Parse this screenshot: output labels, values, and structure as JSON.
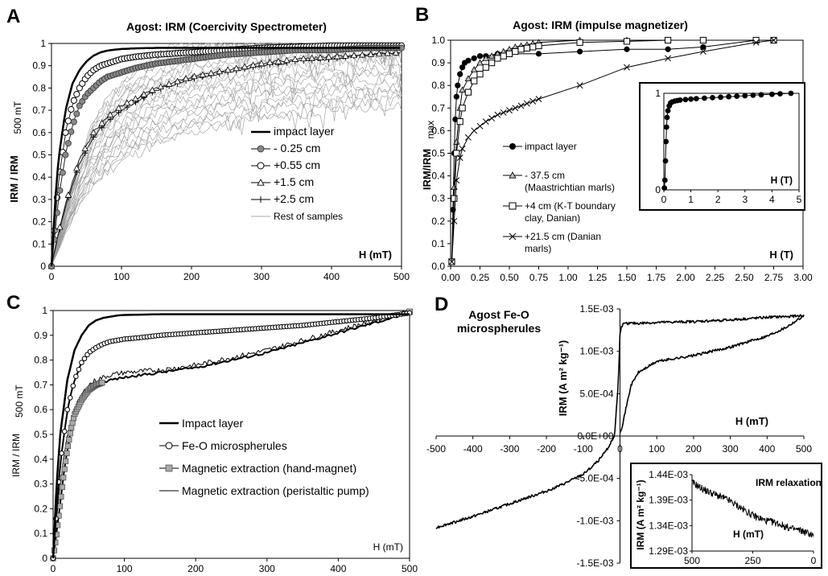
{
  "chart_data": [
    {
      "id": "A",
      "panel_letter": "A",
      "type": "line",
      "title": "Agost: IRM (Coercivity Spectrometer)",
      "xlabel": "H (mT)",
      "ylabel_main": "IRM / IRM",
      "ylabel_sub": "500 mT",
      "xlim": [
        0,
        500
      ],
      "ylim": [
        0,
        1
      ],
      "xticks": [
        0,
        100,
        200,
        300,
        400,
        500
      ],
      "yticks": [
        0,
        0.1,
        0.2,
        0.3,
        0.4,
        0.5,
        0.6,
        0.7,
        0.8,
        0.9,
        1
      ],
      "grid": false,
      "legend_position": "middle-right",
      "series": [
        {
          "name": "impact layer",
          "marker": "none",
          "line": "thick",
          "x": [
            0,
            5,
            10,
            20,
            30,
            40,
            50,
            60,
            70,
            80,
            90,
            100,
            120,
            150,
            200,
            300,
            400,
            500
          ],
          "y": [
            0,
            0.28,
            0.48,
            0.7,
            0.82,
            0.88,
            0.92,
            0.945,
            0.96,
            0.968,
            0.972,
            0.975,
            0.978,
            0.98,
            0.98,
            0.98,
            0.98,
            0.98
          ]
        },
        {
          "name": "- 0.25 cm",
          "marker": "circle-gray",
          "line": "thin",
          "x": [
            0,
            5,
            10,
            20,
            30,
            40,
            50,
            60,
            70,
            80,
            90,
            100,
            120,
            150,
            200,
            250,
            300,
            350,
            400,
            450,
            500
          ],
          "y": [
            0,
            0.15,
            0.3,
            0.5,
            0.63,
            0.72,
            0.77,
            0.8,
            0.83,
            0.85,
            0.86,
            0.87,
            0.89,
            0.91,
            0.93,
            0.95,
            0.96,
            0.97,
            0.97,
            0.98,
            0.98
          ]
        },
        {
          "name": "+0.55 cm",
          "marker": "circle-open",
          "line": "thin",
          "x": [
            0,
            5,
            10,
            20,
            30,
            40,
            50,
            60,
            70,
            80,
            90,
            100,
            120,
            150,
            200,
            250,
            300,
            350,
            400,
            450,
            500
          ],
          "y": [
            0,
            0.2,
            0.38,
            0.6,
            0.73,
            0.8,
            0.85,
            0.88,
            0.9,
            0.91,
            0.92,
            0.93,
            0.94,
            0.95,
            0.96,
            0.97,
            0.98,
            0.985,
            0.99,
            0.99,
            0.99
          ]
        },
        {
          "name": "+1.5 cm",
          "marker": "triangle",
          "line": "thin",
          "x": [
            0,
            10,
            20,
            40,
            60,
            80,
            100,
            150,
            200,
            250,
            300,
            350,
            400,
            450,
            500
          ],
          "y": [
            0,
            0.15,
            0.28,
            0.48,
            0.6,
            0.67,
            0.72,
            0.8,
            0.85,
            0.88,
            0.91,
            0.93,
            0.94,
            0.95,
            0.96
          ]
        },
        {
          "name": "+2.5 cm",
          "marker": "plus",
          "line": "thin",
          "x": [
            0,
            10,
            20,
            40,
            60,
            80,
            100,
            150,
            200,
            250,
            300,
            350,
            400,
            450,
            500
          ],
          "y": [
            0,
            0.14,
            0.27,
            0.46,
            0.58,
            0.65,
            0.7,
            0.79,
            0.84,
            0.87,
            0.9,
            0.92,
            0.93,
            0.95,
            0.96
          ]
        },
        {
          "name": "Rest of samples",
          "marker": "none",
          "line": "gray",
          "x": [
            0,
            10,
            20,
            40,
            60,
            80,
            100,
            150,
            200,
            250,
            300,
            350,
            400,
            450,
            500
          ],
          "y": [
            0,
            0.1,
            0.2,
            0.37,
            0.5,
            0.58,
            0.64,
            0.74,
            0.8,
            0.84,
            0.87,
            0.89,
            0.91,
            0.92,
            0.93
          ]
        }
      ]
    },
    {
      "id": "B",
      "panel_letter": "B",
      "type": "line",
      "title": "Agost: IRM (impulse magnetizer)",
      "xlabel": "H (T)",
      "ylabel_main": "IRM/IRM",
      "ylabel_sub": "max",
      "xlim": [
        0,
        3
      ],
      "ylim": [
        0,
        1
      ],
      "xticks": [
        0,
        0.25,
        0.5,
        0.75,
        1,
        1.25,
        1.5,
        1.75,
        2,
        2.25,
        2.5,
        2.75,
        3
      ],
      "xtick_labels": [
        "0.00",
        "0.25",
        "0.50",
        "0.75",
        "1.00",
        "1.25",
        "1.50",
        "1.75",
        "2.00",
        "2.25",
        "2.50",
        "2.75",
        "3.00"
      ],
      "yticks": [
        0,
        0.1,
        0.2,
        0.3,
        0.4,
        0.5,
        0.6,
        0.7,
        0.8,
        0.9,
        1
      ],
      "ytick_labels": [
        "0.0",
        "0.1",
        "0.2",
        "0.3",
        "0.4",
        "0.5",
        "0.6",
        "0.7",
        "0.8",
        "0.9",
        "1.0"
      ],
      "grid": false,
      "legend_position": "middle-center",
      "series": [
        {
          "name": "impact layer",
          "marker": "circle-filled",
          "x": [
            0.01,
            0.02,
            0.03,
            0.04,
            0.05,
            0.06,
            0.08,
            0.1,
            0.12,
            0.15,
            0.2,
            0.25,
            0.3,
            0.4,
            0.5,
            0.75,
            1.1,
            1.5,
            1.85,
            2.15,
            2.6,
            2.75
          ],
          "y": [
            0.02,
            0.25,
            0.5,
            0.65,
            0.75,
            0.8,
            0.85,
            0.88,
            0.9,
            0.91,
            0.92,
            0.93,
            0.93,
            0.94,
            0.94,
            0.94,
            0.95,
            0.96,
            0.96,
            0.97,
            1.0,
            1.0
          ]
        },
        {
          "name": "- 37.5 cm (Maastrichtian marls)",
          "marker": "triangle-gray",
          "x": [
            0.01,
            0.03,
            0.05,
            0.08,
            0.1,
            0.15,
            0.2,
            0.25,
            0.3,
            0.35,
            0.4,
            0.45,
            0.5,
            0.55,
            0.6,
            0.65,
            0.7,
            0.75,
            1.1,
            1.5,
            1.85,
            2.15,
            2.6,
            2.75
          ],
          "y": [
            0.02,
            0.35,
            0.55,
            0.7,
            0.78,
            0.83,
            0.87,
            0.9,
            0.92,
            0.93,
            0.94,
            0.95,
            0.96,
            0.97,
            0.975,
            0.98,
            0.985,
            0.99,
            1.0,
            1.0,
            1.0,
            1.0,
            1.0,
            1.0
          ]
        },
        {
          "name": "+4 cm (K-T boundary clay, Danian)",
          "marker": "square-open",
          "x": [
            0.01,
            0.03,
            0.05,
            0.08,
            0.1,
            0.15,
            0.2,
            0.25,
            0.3,
            0.35,
            0.4,
            0.45,
            0.5,
            0.55,
            0.6,
            0.65,
            0.7,
            0.75,
            1.1,
            1.5,
            1.85,
            2.15,
            2.6,
            2.75
          ],
          "y": [
            0.02,
            0.3,
            0.5,
            0.64,
            0.7,
            0.77,
            0.82,
            0.85,
            0.88,
            0.9,
            0.92,
            0.93,
            0.94,
            0.95,
            0.96,
            0.965,
            0.97,
            0.975,
            0.99,
            0.995,
            1.0,
            1.0,
            1.0,
            1.0
          ]
        },
        {
          "name": "+21.5 cm (Danian marls)",
          "marker": "cross",
          "x": [
            0.01,
            0.03,
            0.05,
            0.08,
            0.1,
            0.15,
            0.2,
            0.25,
            0.3,
            0.35,
            0.4,
            0.45,
            0.5,
            0.55,
            0.6,
            0.65,
            0.7,
            0.75,
            1.1,
            1.5,
            1.85,
            2.15,
            2.6,
            2.75
          ],
          "y": [
            0.02,
            0.2,
            0.38,
            0.48,
            0.52,
            0.57,
            0.6,
            0.62,
            0.64,
            0.655,
            0.67,
            0.68,
            0.69,
            0.7,
            0.71,
            0.72,
            0.73,
            0.74,
            0.8,
            0.88,
            0.92,
            0.95,
            0.99,
            1.0
          ]
        }
      ]
    },
    {
      "id": "B-inset",
      "type": "line",
      "xlabel": "H (T)",
      "xlim": [
        0,
        5
      ],
      "ylim": [
        0,
        1
      ],
      "xticks": [
        0,
        1,
        2,
        3,
        4,
        5
      ],
      "yticks": [
        0,
        1
      ],
      "series": [
        {
          "name": "impact layer",
          "marker": "circle-filled",
          "x": [
            0.02,
            0.04,
            0.06,
            0.08,
            0.1,
            0.12,
            0.15,
            0.2,
            0.25,
            0.3,
            0.4,
            0.5,
            0.6,
            0.8,
            1.0,
            1.2,
            1.5,
            1.8,
            2.1,
            2.4,
            2.7,
            3.0,
            3.3,
            3.6,
            4.0,
            4.3,
            4.7
          ],
          "y": [
            0.02,
            0.1,
            0.3,
            0.5,
            0.65,
            0.75,
            0.82,
            0.87,
            0.9,
            0.91,
            0.92,
            0.925,
            0.93,
            0.935,
            0.94,
            0.945,
            0.95,
            0.955,
            0.96,
            0.965,
            0.97,
            0.975,
            0.98,
            0.985,
            0.99,
            0.995,
            1.0
          ]
        }
      ]
    },
    {
      "id": "C",
      "panel_letter": "C",
      "type": "line",
      "xlabel": "H (mT)",
      "ylabel_main": "IRM / IRM",
      "ylabel_sub": "500 mT",
      "xlim": [
        0,
        500
      ],
      "ylim": [
        0,
        1
      ],
      "xticks": [
        0,
        100,
        200,
        300,
        400,
        500
      ],
      "yticks": [
        0,
        0.1,
        0.2,
        0.3,
        0.4,
        0.5,
        0.6,
        0.7,
        0.8,
        0.9,
        1
      ],
      "grid": false,
      "legend_position": "lower-center",
      "series": [
        {
          "name": "Impact layer",
          "marker": "none",
          "line": "thick",
          "x": [
            0,
            5,
            10,
            20,
            30,
            40,
            50,
            60,
            70,
            80,
            90,
            100,
            150,
            200,
            300,
            400,
            500
          ],
          "y": [
            0,
            0.3,
            0.5,
            0.72,
            0.84,
            0.9,
            0.94,
            0.96,
            0.97,
            0.975,
            0.98,
            0.982,
            0.985,
            0.985,
            0.985,
            0.985,
            0.985
          ]
        },
        {
          "name": "Fe-O microspherules",
          "marker": "circle-open-dense",
          "line": "dark",
          "x": [
            0,
            5,
            10,
            20,
            30,
            40,
            50,
            60,
            70,
            80,
            100,
            120,
            150,
            200,
            250,
            300,
            350,
            400,
            450,
            500
          ],
          "y": [
            0,
            0.2,
            0.38,
            0.6,
            0.72,
            0.79,
            0.83,
            0.85,
            0.865,
            0.875,
            0.885,
            0.89,
            0.9,
            0.91,
            0.92,
            0.93,
            0.94,
            0.955,
            0.97,
            0.99
          ]
        },
        {
          "name": "Magnetic extraction (hand-magnet)",
          "marker": "square-gray",
          "line": "dark",
          "x": [
            0,
            5,
            10,
            15,
            20,
            25,
            30,
            40,
            50,
            60,
            70,
            80,
            100,
            150,
            200,
            250,
            300,
            350,
            400,
            450,
            500
          ],
          "y": [
            0,
            0.1,
            0.22,
            0.34,
            0.44,
            0.52,
            0.58,
            0.64,
            0.68,
            0.7,
            0.71,
            0.72,
            0.73,
            0.75,
            0.77,
            0.8,
            0.83,
            0.87,
            0.91,
            0.95,
            0.99
          ]
        },
        {
          "name": "Magnetic extraction (peristaltic pump)",
          "marker": "none",
          "line": "thin-noisy",
          "x": [
            0,
            5,
            10,
            20,
            30,
            40,
            50,
            60,
            70,
            80,
            100,
            150,
            200,
            250,
            300,
            350,
            400,
            450,
            500
          ],
          "y": [
            0,
            0.15,
            0.3,
            0.5,
            0.6,
            0.66,
            0.7,
            0.72,
            0.73,
            0.74,
            0.75,
            0.76,
            0.78,
            0.81,
            0.84,
            0.88,
            0.92,
            0.96,
            1.0
          ]
        }
      ]
    },
    {
      "id": "D",
      "panel_letter": "D",
      "type": "line",
      "title_lines": [
        "Agost Fe-O",
        "microspherules"
      ],
      "xlabel": "H (mT)",
      "ylabel": "IRM (A m² kg⁻¹)",
      "xlim": [
        -500,
        500
      ],
      "ylim": [
        -0.0015,
        0.0015
      ],
      "xticks": [
        -500,
        -400,
        -300,
        -200,
        -100,
        0,
        100,
        200,
        300,
        400,
        500
      ],
      "yticks": [
        -0.0015,
        -0.001,
        -0.0005,
        0,
        0.0005,
        0.001,
        0.0015
      ],
      "ytick_labels": [
        "-1.5E-03",
        "-1.0E-03",
        "-5.0E-04",
        "0.0E+00",
        "5.0E-04",
        "1.0E-03",
        "1.5E-03"
      ],
      "series": [
        {
          "name": "upper branch",
          "x": [
            -500,
            -400,
            -300,
            -200,
            -150,
            -100,
            -80,
            -50,
            -30,
            -15,
            -5,
            0,
            5,
            10,
            20,
            50,
            100,
            200,
            300,
            400,
            500
          ],
          "y": [
            -0.00108,
            -0.00095,
            -0.0008,
            -0.00065,
            -0.00056,
            -0.00045,
            -0.00038,
            -0.00025,
            -0.00012,
            0,
            0.0006,
            0.00122,
            0.0013,
            0.00132,
            0.00133,
            0.00133,
            0.00134,
            0.00135,
            0.00137,
            0.0014,
            0.00142
          ]
        },
        {
          "name": "lower branch",
          "x": [
            0,
            5,
            10,
            20,
            30,
            50,
            100,
            200,
            300,
            400,
            450,
            500
          ],
          "y": [
            5e-05,
            0.0001,
            0.0002,
            0.0004,
            0.0006,
            0.00075,
            0.00088,
            0.00095,
            0.00105,
            0.00118,
            0.00128,
            0.00142
          ]
        }
      ]
    },
    {
      "id": "D-inset",
      "type": "line",
      "title": "IRM relaxation",
      "xlabel": "H (mT)",
      "ylabel": "IRM (A m² kg⁻¹)",
      "xlim": [
        500,
        0
      ],
      "ylim": [
        0.00129,
        0.00144
      ],
      "xticks": [
        500,
        250,
        0
      ],
      "yticks": [
        0.00129,
        0.00134,
        0.00139,
        0.00144
      ],
      "ytick_labels": [
        "1.29E-03",
        "1.34E-03",
        "1.39E-03",
        "1.44E-03"
      ],
      "series": [
        {
          "name": "relaxation",
          "x": [
            500,
            450,
            400,
            350,
            300,
            250,
            200,
            150,
            100,
            50,
            20,
            0
          ],
          "y": [
            0.001425,
            0.00141,
            0.0014,
            0.00139,
            0.001375,
            0.00136,
            0.00135,
            0.001345,
            0.001335,
            0.00133,
            0.001325,
            0.00132
          ]
        }
      ]
    }
  ]
}
